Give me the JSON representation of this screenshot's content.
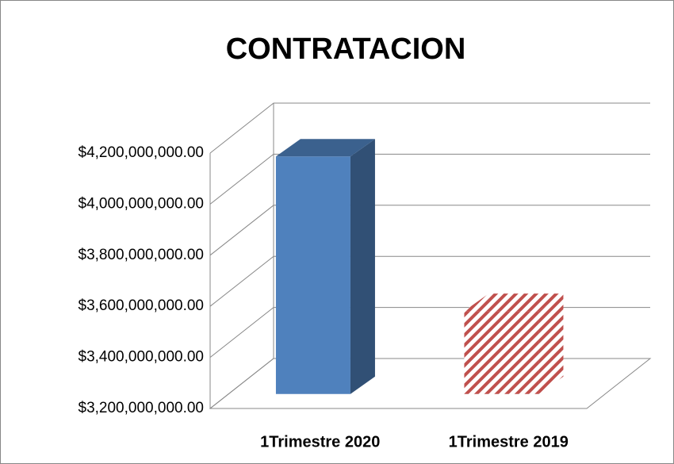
{
  "chart_data": {
    "type": "bar3d",
    "title": "CONTRATACION",
    "categories": [
      "1Trimestre 2020",
      "1Trimestre 2019"
    ],
    "values": [
      4130000000,
      3525000000
    ],
    "colors": [
      "#4f81bd",
      "#c0504d"
    ],
    "hatch": [
      false,
      true
    ],
    "ylim": [
      3200000000,
      4200000000
    ],
    "yticks": [
      {
        "value": 3200000000,
        "label": "$3,200,000,000.00"
      },
      {
        "value": 3400000000,
        "label": "$3,400,000,000.00"
      },
      {
        "value": 3600000000,
        "label": "$3,600,000,000.00"
      },
      {
        "value": 3800000000,
        "label": "$3,800,000,000.00"
      },
      {
        "value": 4000000000,
        "label": "$4,000,000,000.00"
      },
      {
        "value": 4200000000,
        "label": "$4,200,000,000.00"
      }
    ],
    "grid": true
  }
}
